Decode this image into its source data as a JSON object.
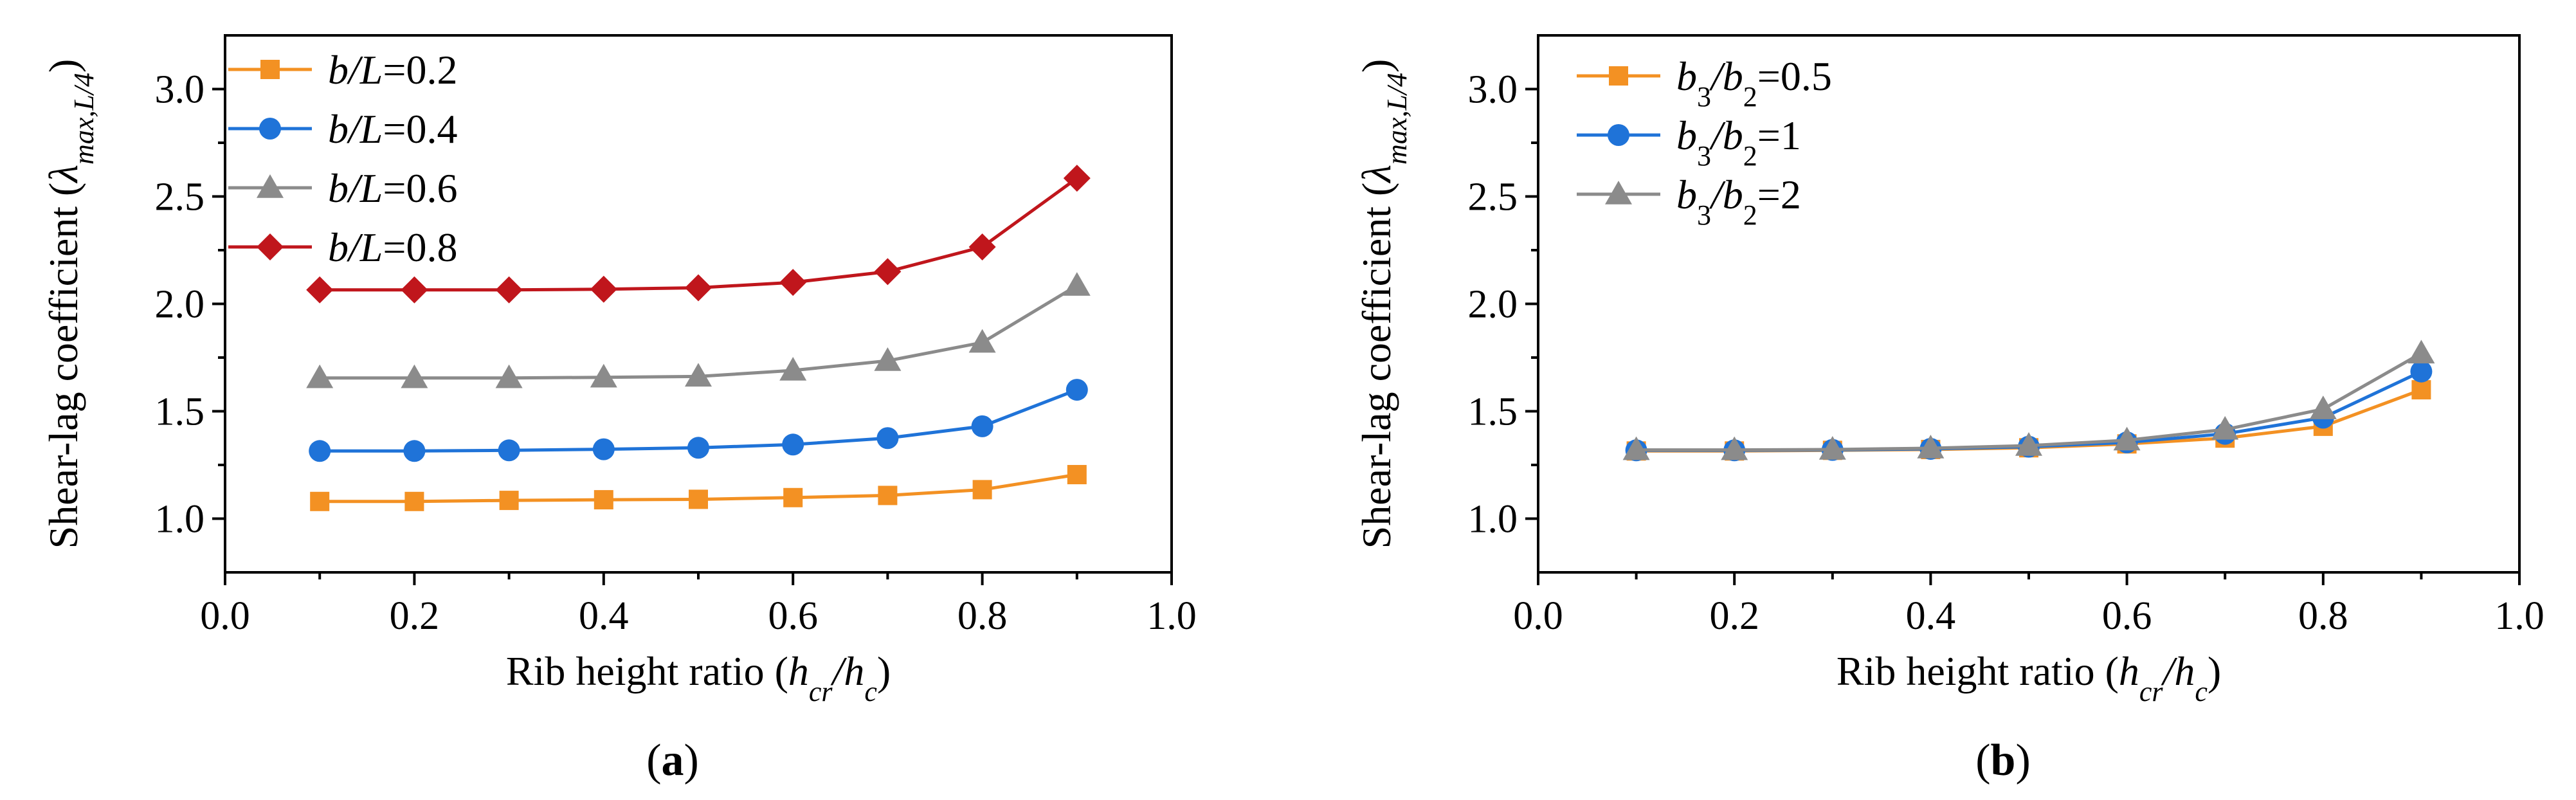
{
  "chart_data": [
    {
      "type": "line",
      "panel_label": "a",
      "xlabel": "Rib height ratio (hcr/hc)",
      "ylabel": "Shear-lag coefficient (λmax,L/4)",
      "xlim": [
        0.0,
        1.0
      ],
      "ylim": [
        0.75,
        3.25
      ],
      "xticks": [
        "0.0",
        "0.2",
        "0.4",
        "0.6",
        "0.8",
        "1.0"
      ],
      "yticks": [
        "1.0",
        "1.5",
        "2.0",
        "2.5",
        "3.0"
      ],
      "x": [
        0.1,
        0.2,
        0.3,
        0.4,
        0.5,
        0.6,
        0.7,
        0.8,
        0.9
      ],
      "legend_position": "top-left",
      "series": [
        {
          "name": "b/L=0.2",
          "var": "b/L",
          "val": "=0.2",
          "color": "#f39123",
          "marker": "square",
          "values": [
            1.08,
            1.08,
            1.085,
            1.088,
            1.09,
            1.098,
            1.108,
            1.135,
            1.205
          ]
        },
        {
          "name": "b/L=0.4",
          "var": "b/L",
          "val": "=0.4",
          "color": "#1f73d8",
          "marker": "circle",
          "values": [
            1.315,
            1.315,
            1.318,
            1.323,
            1.33,
            1.345,
            1.375,
            1.43,
            1.6
          ]
        },
        {
          "name": "b/L=0.6",
          "var": "b/L",
          "val": "=0.6",
          "color": "#8b8b8b",
          "marker": "triangle",
          "values": [
            1.655,
            1.655,
            1.655,
            1.658,
            1.662,
            1.69,
            1.735,
            1.82,
            2.085
          ]
        },
        {
          "name": "b/L=0.8",
          "var": "b/L",
          "val": "=0.8",
          "color": "#c0161c",
          "marker": "diamond",
          "values": [
            2.065,
            2.065,
            2.065,
            2.068,
            2.075,
            2.1,
            2.15,
            2.265,
            2.585
          ]
        }
      ]
    },
    {
      "type": "line",
      "panel_label": "b",
      "xlabel": "Rib height ratio (hcr/hc)",
      "ylabel": "Shear-lag coefficient (λmax,L/4)",
      "xlim": [
        0.0,
        1.0
      ],
      "ylim": [
        0.75,
        3.25
      ],
      "xticks": [
        "0.0",
        "0.2",
        "0.4",
        "0.6",
        "0.8",
        "1.0"
      ],
      "yticks": [
        "1.0",
        "1.5",
        "2.0",
        "2.5",
        "3.0"
      ],
      "x": [
        0.1,
        0.2,
        0.3,
        0.4,
        0.5,
        0.6,
        0.7,
        0.8,
        0.9
      ],
      "legend_position": "top-left",
      "series": [
        {
          "name": "b3/b2=0.5",
          "var": "b3/b2",
          "val": "=0.5",
          "color": "#f39123",
          "marker": "square",
          "values": [
            1.315,
            1.315,
            1.318,
            1.322,
            1.33,
            1.348,
            1.375,
            1.43,
            1.6
          ]
        },
        {
          "name": "b3/b2=1",
          "var": "b3/b2",
          "val": "=1",
          "color": "#1f73d8",
          "marker": "circle",
          "values": [
            1.318,
            1.318,
            1.32,
            1.325,
            1.335,
            1.355,
            1.395,
            1.47,
            1.685
          ]
        },
        {
          "name": "b3/b2=2",
          "var": "b3/b2",
          "val": "=2",
          "color": "#8b8b8b",
          "marker": "triangle",
          "values": [
            1.32,
            1.32,
            1.322,
            1.328,
            1.34,
            1.365,
            1.415,
            1.51,
            1.77
          ]
        }
      ]
    }
  ]
}
